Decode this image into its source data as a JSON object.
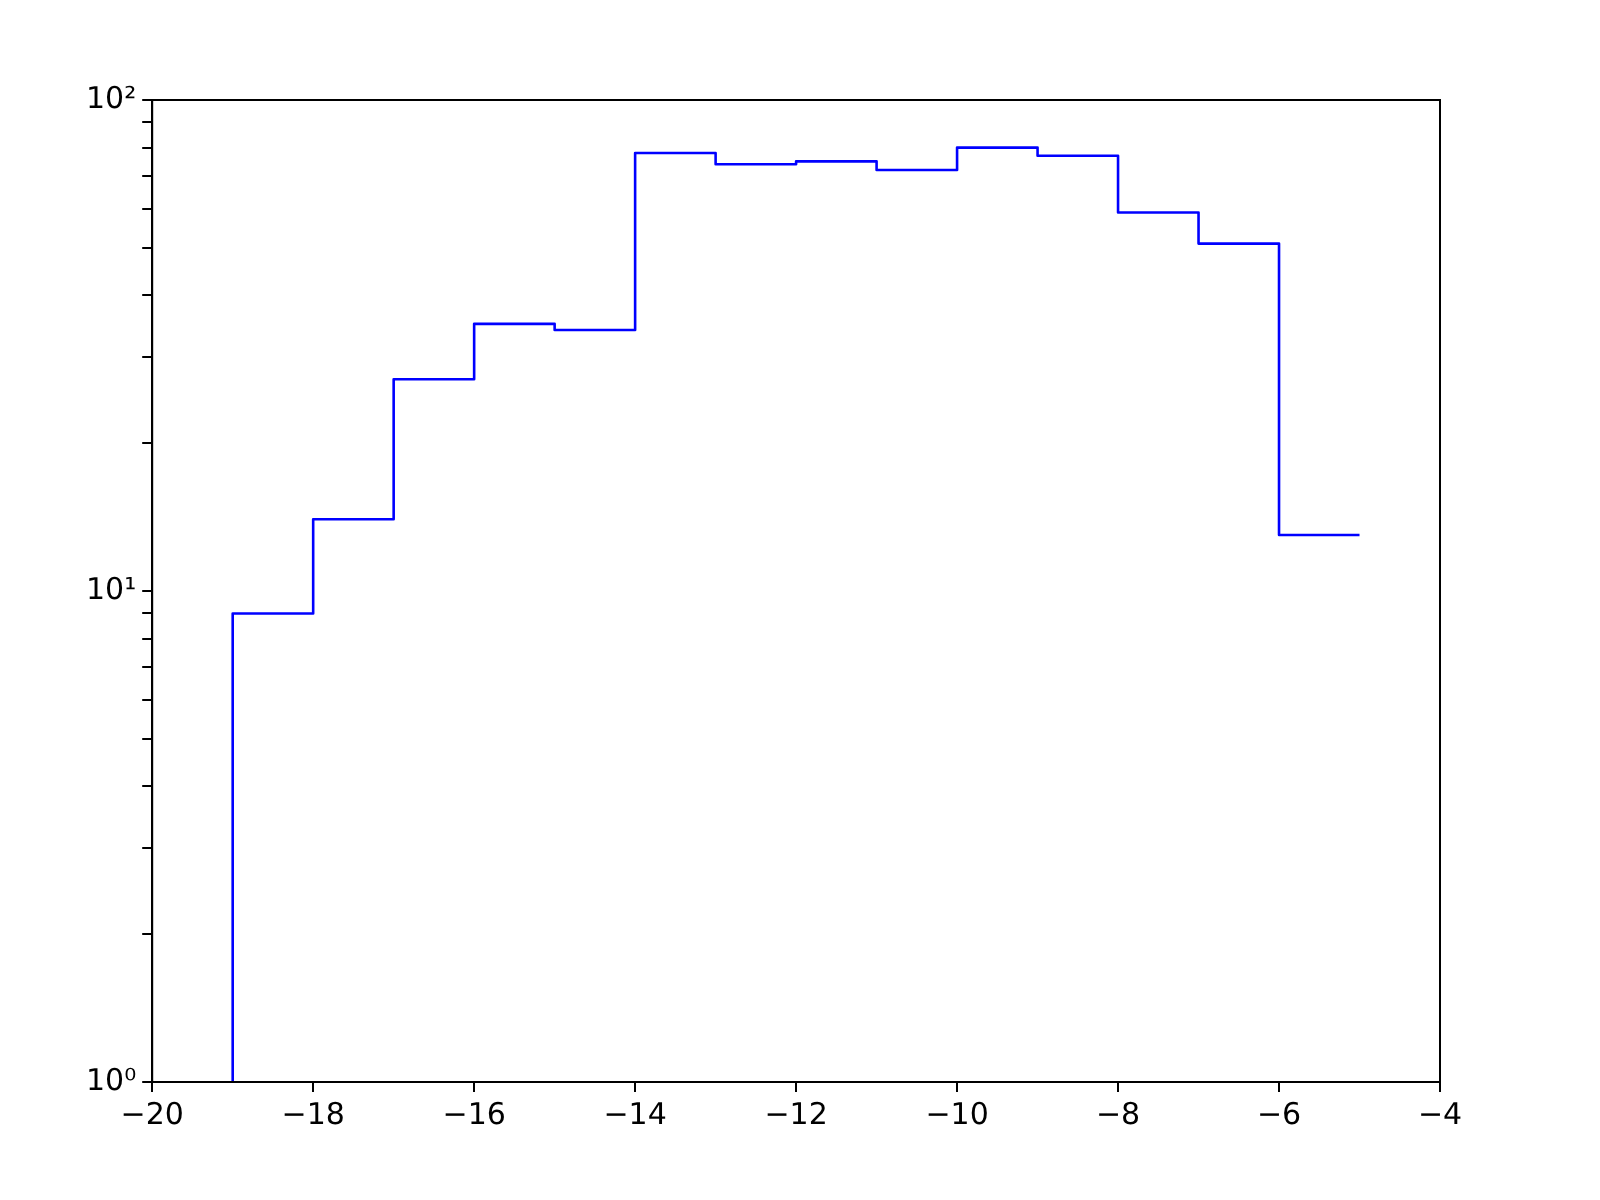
{
  "chart_data": {
    "type": "histogram",
    "color": "#0000ff",
    "bins": [
      -19,
      -18,
      -17,
      -16,
      -15,
      -14,
      -13,
      -12,
      -11,
      -10,
      -9,
      -8,
      -7,
      -6,
      -5
    ],
    "values": [
      9,
      14,
      27,
      35,
      34,
      78,
      74,
      75,
      72,
      80,
      77,
      59,
      51,
      13
    ],
    "log": "y",
    "grid": false,
    "xlim": [
      -20,
      -4
    ],
    "xticks": [
      {
        "value": -20,
        "label": "−20"
      },
      {
        "value": -18,
        "label": "−18"
      },
      {
        "value": -16,
        "label": "−16"
      },
      {
        "value": -14,
        "label": "−14"
      },
      {
        "value": -12,
        "label": "−12"
      },
      {
        "value": -10,
        "label": "−10"
      },
      {
        "value": -8,
        "label": "−8"
      },
      {
        "value": -6,
        "label": "−6"
      },
      {
        "value": -4,
        "label": "−4"
      }
    ],
    "ylim": [
      1,
      100
    ],
    "yticks": [
      {
        "value": 1,
        "label": "10⁰"
      },
      {
        "value": 2,
        "label": null
      },
      {
        "value": 3,
        "label": null
      },
      {
        "value": 4,
        "label": null
      },
      {
        "value": 5,
        "label": null
      },
      {
        "value": 6,
        "label": null
      },
      {
        "value": 7,
        "label": null
      },
      {
        "value": 8,
        "label": null
      },
      {
        "value": 9,
        "label": null
      },
      {
        "value": 10,
        "label": "10¹"
      },
      {
        "value": 20,
        "label": null
      },
      {
        "value": 30,
        "label": null
      },
      {
        "value": 40,
        "label": null
      },
      {
        "value": 50,
        "label": null
      },
      {
        "value": 60,
        "label": null
      },
      {
        "value": 70,
        "label": null
      },
      {
        "value": 80,
        "label": null
      },
      {
        "value": 90,
        "label": null
      },
      {
        "value": 100,
        "label": "10²"
      }
    ]
  }
}
